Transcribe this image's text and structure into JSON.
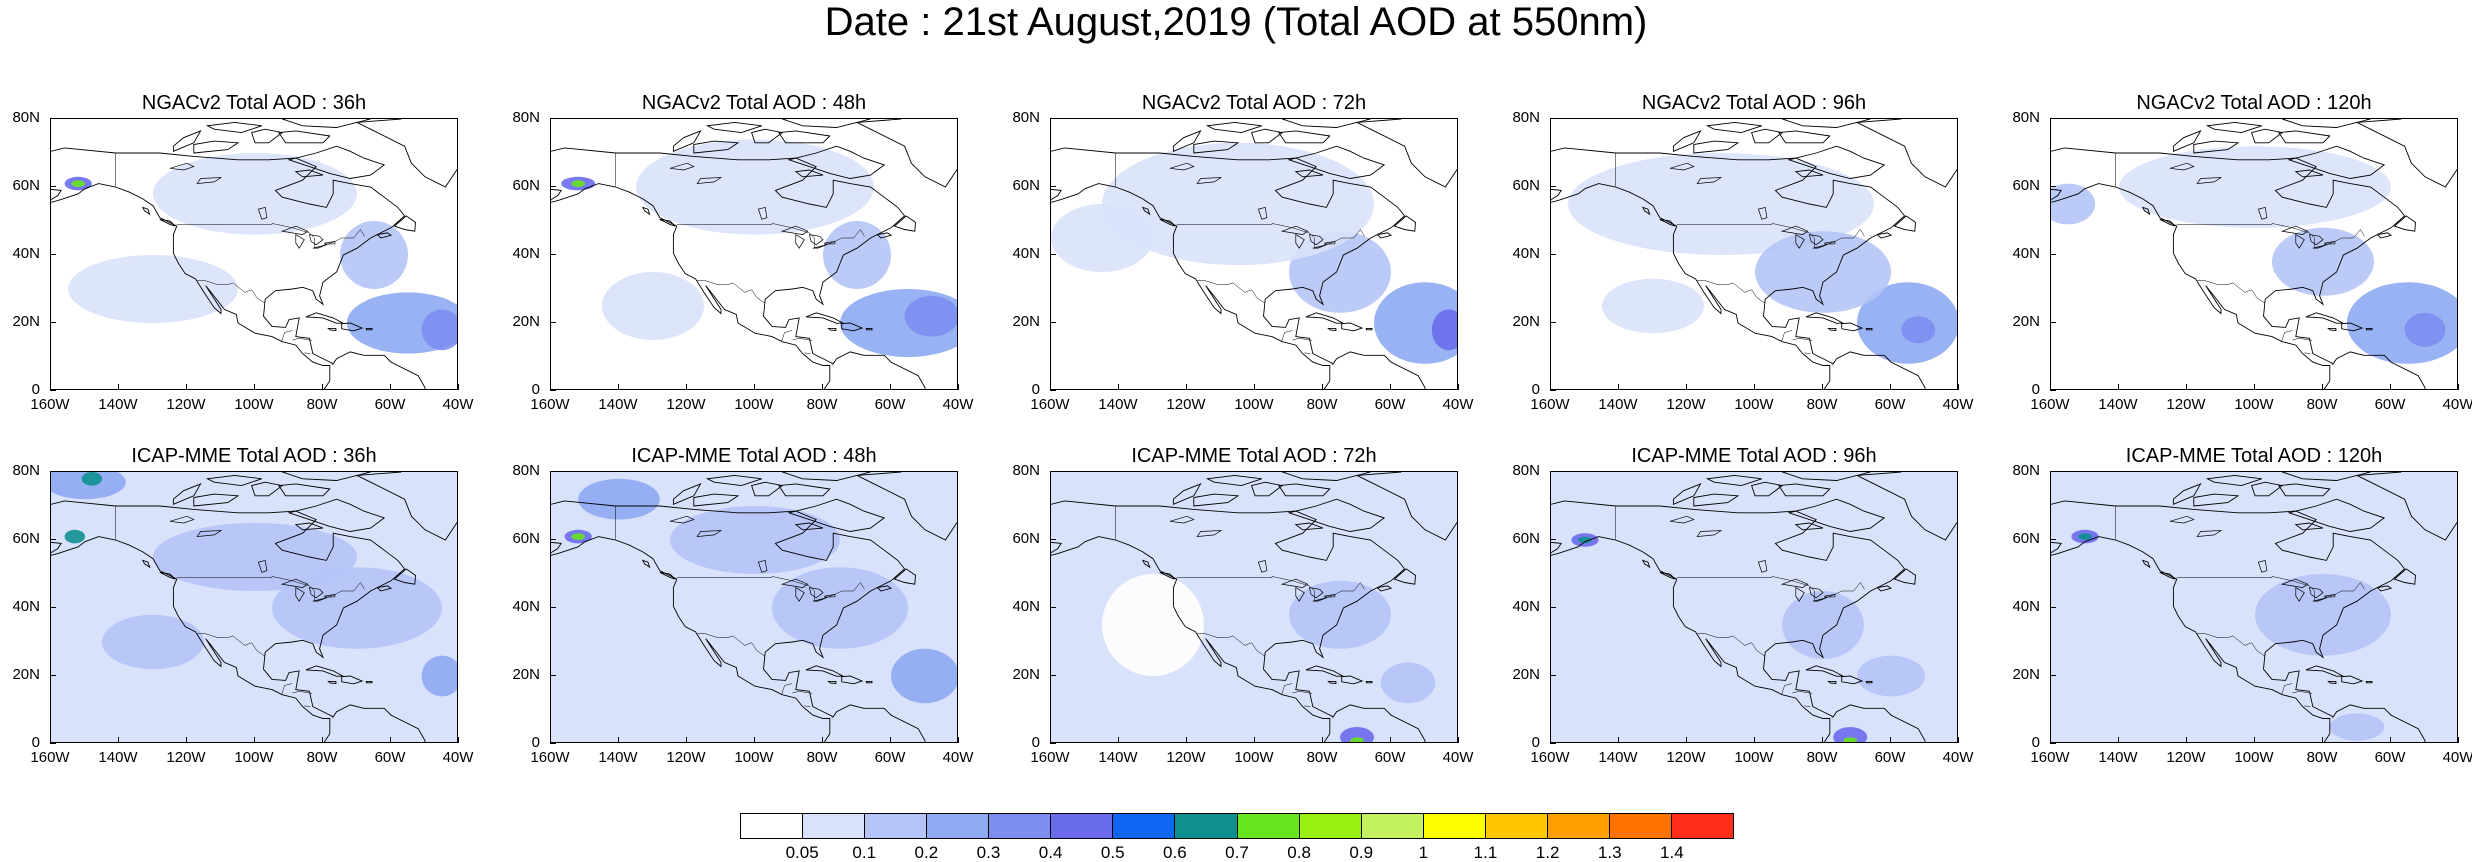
{
  "title": "Date : 21st August,2019 (Total AOD at 550nm)",
  "map": {
    "lon_range": [
      -160,
      -40
    ],
    "lat_range": [
      0,
      80
    ],
    "lon_ticks": [
      "160W",
      "140W",
      "120W",
      "100W",
      "80W",
      "60W",
      "40W"
    ],
    "lat_ticks": [
      "80N",
      "60N",
      "40N",
      "20N",
      "0"
    ],
    "coastline_color": "#000000"
  },
  "panels": [
    {
      "title": "NGACv2 Total AOD : 36h",
      "background_class": 0,
      "blobs": [
        {
          "lon": -55,
          "lat": 20,
          "rx": 18,
          "ry": 9,
          "class": 3
        },
        {
          "lon": -45,
          "lat": 18,
          "rx": 6,
          "ry": 6,
          "class": 4
        },
        {
          "lon": -65,
          "lat": 40,
          "rx": 10,
          "ry": 10,
          "class": 2
        },
        {
          "lon": -130,
          "lat": 30,
          "rx": 25,
          "ry": 10,
          "class": 1
        },
        {
          "lon": -100,
          "lat": 58,
          "rx": 30,
          "ry": 12,
          "class": 1
        },
        {
          "lon": -152,
          "lat": 61,
          "rx": 4,
          "ry": 2,
          "class": 5
        },
        {
          "lon": -152,
          "lat": 61,
          "rx": 2,
          "ry": 1,
          "class": 8
        }
      ]
    },
    {
      "title": "NGACv2 Total AOD : 48h",
      "background_class": 0,
      "blobs": [
        {
          "lon": -55,
          "lat": 20,
          "rx": 20,
          "ry": 10,
          "class": 3
        },
        {
          "lon": -48,
          "lat": 22,
          "rx": 8,
          "ry": 6,
          "class": 4
        },
        {
          "lon": -70,
          "lat": 40,
          "rx": 10,
          "ry": 10,
          "class": 2
        },
        {
          "lon": -100,
          "lat": 60,
          "rx": 35,
          "ry": 14,
          "class": 1
        },
        {
          "lon": -130,
          "lat": 25,
          "rx": 15,
          "ry": 10,
          "class": 1
        },
        {
          "lon": -152,
          "lat": 61,
          "rx": 5,
          "ry": 2,
          "class": 5
        },
        {
          "lon": -152,
          "lat": 61,
          "rx": 2,
          "ry": 1,
          "class": 8
        }
      ]
    },
    {
      "title": "NGACv2 Total AOD : 72h",
      "background_class": 0,
      "blobs": [
        {
          "lon": -50,
          "lat": 20,
          "rx": 15,
          "ry": 12,
          "class": 3
        },
        {
          "lon": -43,
          "lat": 18,
          "rx": 5,
          "ry": 6,
          "class": 5
        },
        {
          "lon": -75,
          "lat": 35,
          "rx": 15,
          "ry": 12,
          "class": 2
        },
        {
          "lon": -105,
          "lat": 55,
          "rx": 40,
          "ry": 18,
          "class": 1
        },
        {
          "lon": -145,
          "lat": 45,
          "rx": 15,
          "ry": 10,
          "class": 1
        }
      ]
    },
    {
      "title": "NGACv2 Total AOD : 96h",
      "background_class": 0,
      "blobs": [
        {
          "lon": -55,
          "lat": 20,
          "rx": 15,
          "ry": 12,
          "class": 3
        },
        {
          "lon": -52,
          "lat": 18,
          "rx": 5,
          "ry": 4,
          "class": 4
        },
        {
          "lon": -110,
          "lat": 55,
          "rx": 45,
          "ry": 15,
          "class": 1
        },
        {
          "lon": -80,
          "lat": 35,
          "rx": 20,
          "ry": 12,
          "class": 2
        },
        {
          "lon": -130,
          "lat": 25,
          "rx": 15,
          "ry": 8,
          "class": 1
        }
      ]
    },
    {
      "title": "NGACv2 Total AOD : 120h",
      "background_class": 0,
      "blobs": [
        {
          "lon": -55,
          "lat": 20,
          "rx": 18,
          "ry": 12,
          "class": 3
        },
        {
          "lon": -50,
          "lat": 18,
          "rx": 6,
          "ry": 5,
          "class": 4
        },
        {
          "lon": -155,
          "lat": 55,
          "rx": 8,
          "ry": 6,
          "class": 2
        },
        {
          "lon": -100,
          "lat": 60,
          "rx": 40,
          "ry": 12,
          "class": 1
        },
        {
          "lon": -80,
          "lat": 38,
          "rx": 15,
          "ry": 10,
          "class": 2
        }
      ]
    },
    {
      "title": "ICAP-MME Total AOD : 36h",
      "background_class": 1,
      "blobs": [
        {
          "lon": -150,
          "lat": 77,
          "rx": 12,
          "ry": 5,
          "class": 3
        },
        {
          "lon": -148,
          "lat": 78,
          "rx": 3,
          "ry": 2,
          "class": 7
        },
        {
          "lon": -153,
          "lat": 61,
          "rx": 3,
          "ry": 2,
          "class": 7
        },
        {
          "lon": -70,
          "lat": 40,
          "rx": 25,
          "ry": 12,
          "class": 2
        },
        {
          "lon": -45,
          "lat": 20,
          "rx": 6,
          "ry": 6,
          "class": 3
        },
        {
          "lon": -100,
          "lat": 55,
          "rx": 30,
          "ry": 10,
          "class": 2
        },
        {
          "lon": -130,
          "lat": 30,
          "rx": 15,
          "ry": 8,
          "class": 2
        }
      ]
    },
    {
      "title": "ICAP-MME Total AOD : 48h",
      "background_class": 1,
      "blobs": [
        {
          "lon": -140,
          "lat": 72,
          "rx": 12,
          "ry": 6,
          "class": 3
        },
        {
          "lon": -152,
          "lat": 61,
          "rx": 4,
          "ry": 2,
          "class": 5
        },
        {
          "lon": -152,
          "lat": 61,
          "rx": 2,
          "ry": 1,
          "class": 8
        },
        {
          "lon": -75,
          "lat": 40,
          "rx": 20,
          "ry": 12,
          "class": 2
        },
        {
          "lon": -50,
          "lat": 20,
          "rx": 10,
          "ry": 8,
          "class": 3
        },
        {
          "lon": -100,
          "lat": 60,
          "rx": 25,
          "ry": 10,
          "class": 2
        }
      ]
    },
    {
      "title": "ICAP-MME Total AOD : 72h",
      "background_class": 1,
      "blobs": [
        {
          "lon": -70,
          "lat": 2,
          "rx": 5,
          "ry": 3,
          "class": 5
        },
        {
          "lon": -70,
          "lat": 1,
          "rx": 2,
          "ry": 1,
          "class": 8
        },
        {
          "lon": -55,
          "lat": 18,
          "rx": 8,
          "ry": 6,
          "class": 2
        },
        {
          "lon": -130,
          "lat": 35,
          "rx": 15,
          "ry": 15,
          "class": 0
        },
        {
          "lon": -75,
          "lat": 38,
          "rx": 15,
          "ry": 10,
          "class": 2
        }
      ]
    },
    {
      "title": "ICAP-MME Total AOD : 96h",
      "background_class": 1,
      "blobs": [
        {
          "lon": -72,
          "lat": 2,
          "rx": 5,
          "ry": 3,
          "class": 5
        },
        {
          "lon": -72,
          "lat": 1,
          "rx": 2,
          "ry": 1,
          "class": 8
        },
        {
          "lon": -150,
          "lat": 60,
          "rx": 4,
          "ry": 2,
          "class": 5
        },
        {
          "lon": -150,
          "lat": 60,
          "rx": 2,
          "ry": 1,
          "class": 7
        },
        {
          "lon": -60,
          "lat": 20,
          "rx": 10,
          "ry": 6,
          "class": 2
        },
        {
          "lon": -80,
          "lat": 35,
          "rx": 12,
          "ry": 10,
          "class": 2
        }
      ]
    },
    {
      "title": "ICAP-MME Total AOD : 120h",
      "background_class": 1,
      "blobs": [
        {
          "lon": -150,
          "lat": 61,
          "rx": 4,
          "ry": 2,
          "class": 5
        },
        {
          "lon": -150,
          "lat": 61,
          "rx": 2,
          "ry": 1,
          "class": 7
        },
        {
          "lon": -80,
          "lat": 38,
          "rx": 20,
          "ry": 12,
          "class": 2
        },
        {
          "lon": -70,
          "lat": 5,
          "rx": 8,
          "ry": 4,
          "class": 2
        }
      ]
    }
  ],
  "colorbar": {
    "colors": [
      "#ffffff",
      "#d9e2fb",
      "#b4c4f6",
      "#8eaaf3",
      "#7d8ef1",
      "#6a6ced",
      "#0f65f4",
      "#0f9090",
      "#66e51d",
      "#99ee12",
      "#c3f25e",
      "#fffe00",
      "#ffc700",
      "#ff9f00",
      "#ff7200",
      "#ff2e1a"
    ],
    "labels": [
      "0.05",
      "0.1",
      "0.2",
      "0.3",
      "0.4",
      "0.5",
      "0.6",
      "0.7",
      "0.8",
      "0.9",
      "1",
      "1.1",
      "1.2",
      "1.3",
      "1.4"
    ]
  }
}
